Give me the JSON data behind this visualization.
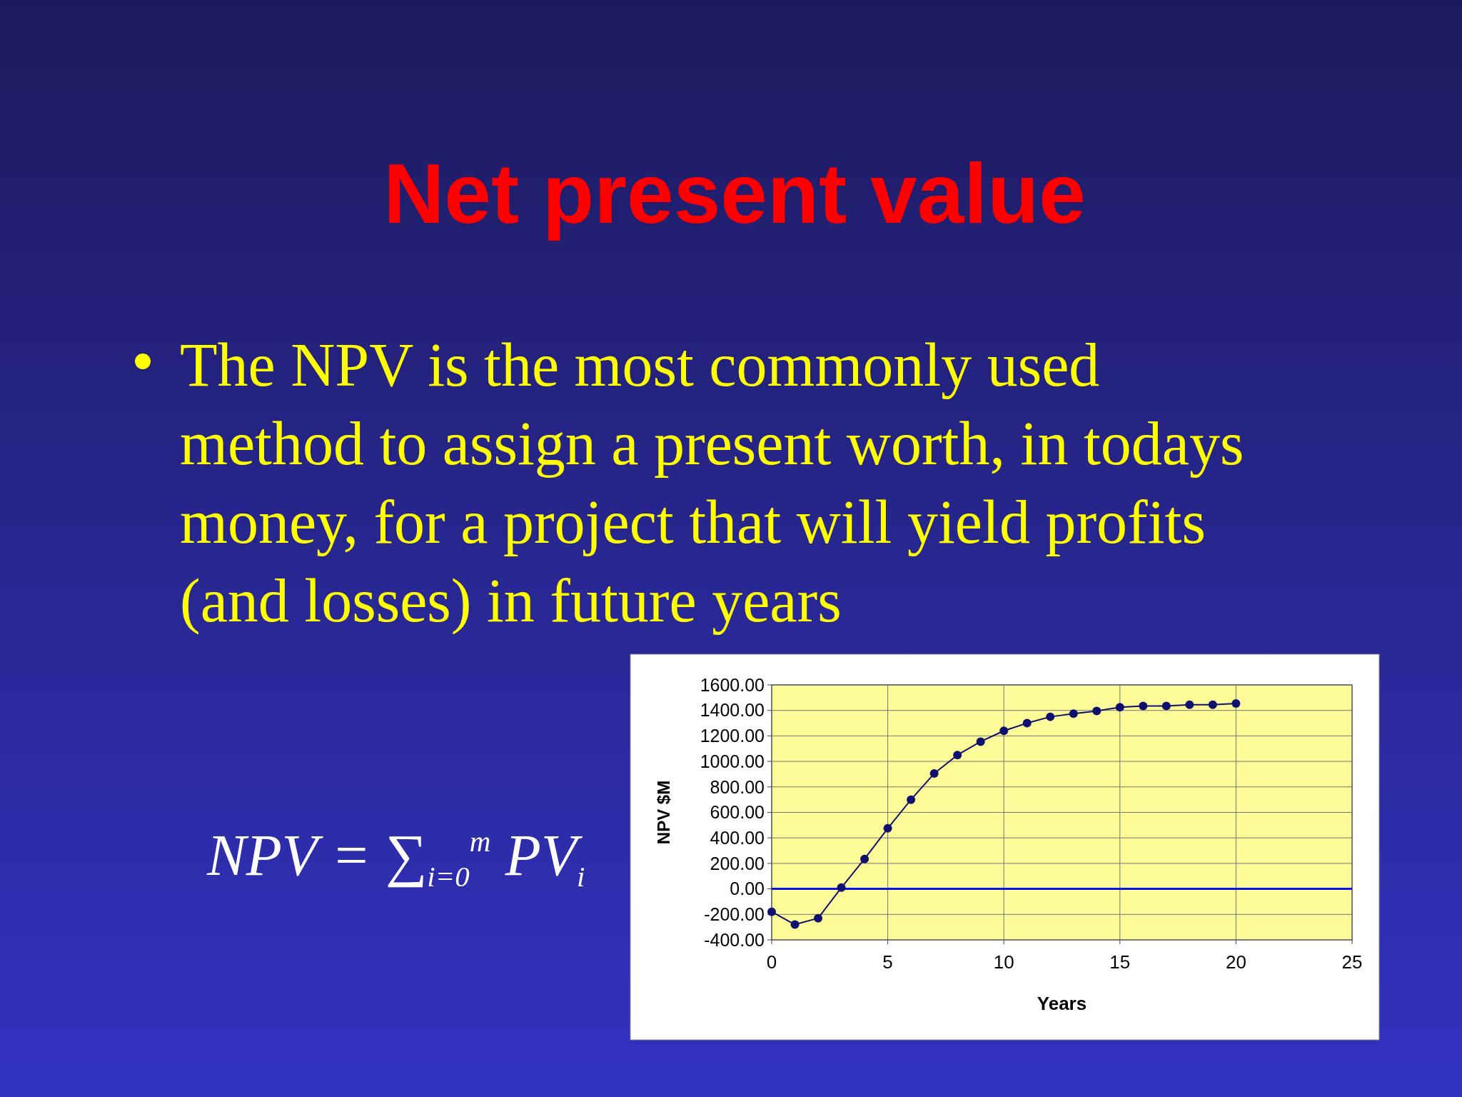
{
  "chart_data": {
    "type": "line",
    "title": "Net present value",
    "subtitle": "The NPV is the most commonly used method to assign a present worth, in todays money, for a project that will yield profits (and losses) in future years",
    "annotations": [
      "NPV = ∑$_{i=0}$$^{m}$ PV$_{i}$"
    ],
    "xlabel": "Years",
    "ylabel": "NPV $M",
    "x": [
      0,
      1,
      2,
      3,
      4,
      5,
      6,
      7,
      8,
      9,
      10,
      11,
      12,
      13,
      14,
      15,
      16,
      17,
      18,
      19,
      20
    ],
    "series": [
      {
        "color": "#10106e",
        "values": [
          -180,
          -280,
          -230,
          10,
          235,
          475,
          700,
          905,
          1050,
          1155,
          1240,
          1300,
          1350,
          1375,
          1395,
          1425,
          1435,
          1435,
          1445,
          1445,
          1455
        ]
      }
    ],
    "ref_lines": [
      {
        "axis": "y",
        "value": 0,
        "color": "#0a14e0"
      }
    ],
    "xlim": [
      0,
      25
    ],
    "xticks": [
      0,
      5,
      10,
      15,
      20,
      25
    ],
    "ylim": [
      -400,
      1600
    ],
    "yticks": [
      {
        "value": -400,
        "label": "-400.00"
      },
      {
        "value": -200,
        "label": "-200.00"
      },
      {
        "value": 0,
        "label": "0.00"
      },
      {
        "value": 200,
        "label": "200.00"
      },
      {
        "value": 400,
        "label": "400.00"
      },
      {
        "value": 600,
        "label": "600.00"
      },
      {
        "value": 800,
        "label": "800.00"
      },
      {
        "value": 1000,
        "label": "1000.00"
      },
      {
        "value": 1200,
        "label": "1200.00"
      },
      {
        "value": 1400,
        "label": "1400.00"
      },
      {
        "value": 1600,
        "label": "1600.00"
      }
    ],
    "grid": true,
    "marker": "circle",
    "line_style": "solid"
  }
}
